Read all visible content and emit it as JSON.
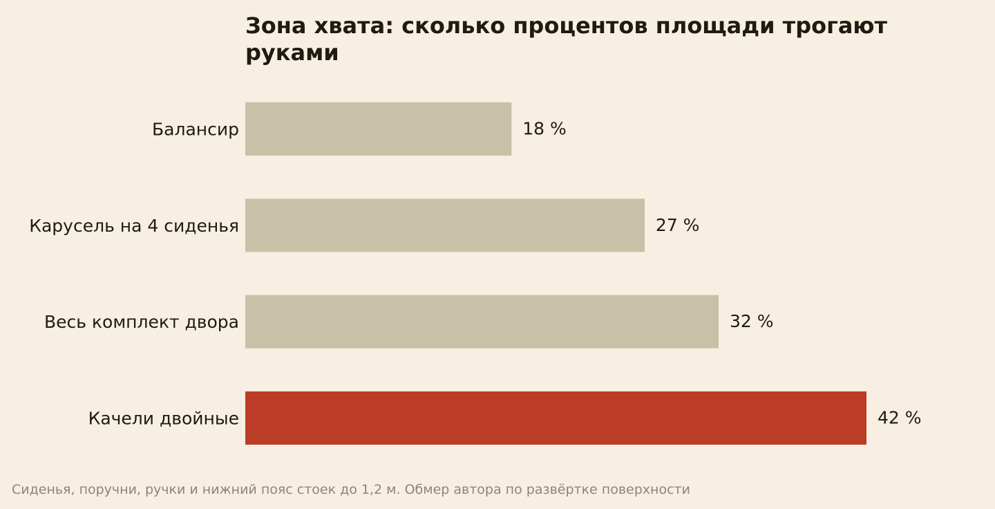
{
  "chart_data": {
    "type": "bar",
    "orientation": "horizontal",
    "title": "Зона хвата: сколько процентов площади трогают руками",
    "categories": [
      "Балансир",
      "Карусель на 4 сиденья",
      "Весь комплект двора",
      "Качели двойные"
    ],
    "values": [
      18,
      27,
      32,
      42
    ],
    "value_labels": [
      "18 %",
      "27 %",
      "32 %",
      "42 %"
    ],
    "highlight_category": "Качели двойные",
    "bar_color": "#c9c0a8",
    "highlight_color": "#bc3d27",
    "background_color": "#f6efe2",
    "xlim": [
      0,
      42
    ],
    "grid": false,
    "legend": "none",
    "footnote": "Сиденья, поручни, ручки и нижний пояс стоек до 1,2 м. Обмер автора по развёртке поверхности"
  }
}
